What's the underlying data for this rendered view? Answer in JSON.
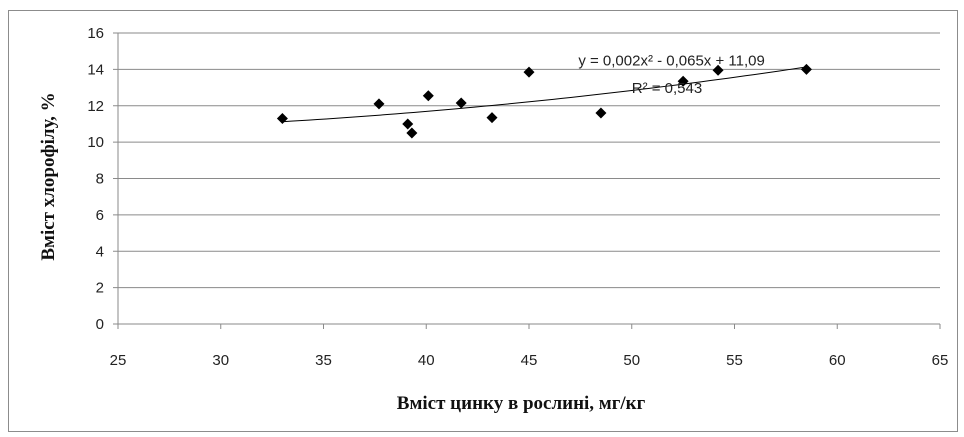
{
  "chart_data": {
    "type": "scatter",
    "title": "",
    "xlabel": "Вміст цинку в рослині, мг/кг",
    "ylabel": "Вміст хлорофілу, %",
    "xlim": [
      25,
      65
    ],
    "ylim": [
      0,
      16
    ],
    "xticks": [
      25,
      30,
      35,
      40,
      45,
      50,
      55,
      60,
      65
    ],
    "yticks": [
      0,
      2,
      4,
      6,
      8,
      10,
      12,
      14,
      16
    ],
    "grid": true,
    "legend": "none",
    "marker": "diamond",
    "marker_color": "#000000",
    "points": [
      {
        "x": 33.0,
        "y": 11.3
      },
      {
        "x": 37.7,
        "y": 12.1
      },
      {
        "x": 39.1,
        "y": 11.0
      },
      {
        "x": 39.3,
        "y": 10.5
      },
      {
        "x": 40.1,
        "y": 12.55
      },
      {
        "x": 41.7,
        "y": 12.15
      },
      {
        "x": 43.2,
        "y": 11.35
      },
      {
        "x": 45.0,
        "y": 13.85
      },
      {
        "x": 48.5,
        "y": 11.6
      },
      {
        "x": 52.5,
        "y": 13.35
      },
      {
        "x": 54.2,
        "y": 13.95
      },
      {
        "x": 58.5,
        "y": 14.0
      }
    ],
    "trendline": {
      "type": "polynomial",
      "order": 2,
      "coefficients": [
        0.002,
        -0.065,
        11.09
      ],
      "x_range": [
        33.0,
        58.5
      ],
      "equation_label": "y = 0,002x² - 0,065x + 11,09",
      "r2_label": "R² = 0,543"
    }
  }
}
